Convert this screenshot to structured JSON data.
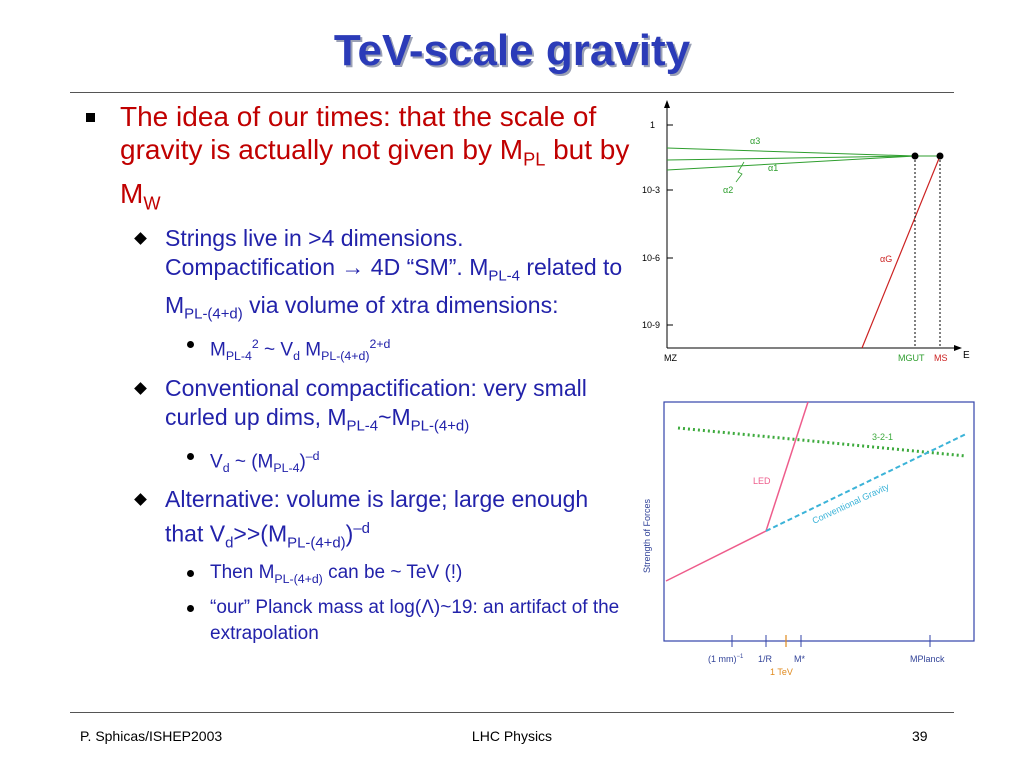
{
  "slide": {
    "title": "TeV-scale gravity",
    "bullet1": {
      "text_a": "The idea of our times: that the scale of gravity is actually not given by M",
      "sub_a": "PL",
      "text_b": " but by M",
      "sub_b": "W"
    },
    "bullet2": {
      "text_a": "Strings live in >4 dimensions. Compactification ",
      "arrow": "→",
      "text_b": " 4D “SM”.  M",
      "sub_b": "PL-4",
      "text_c": " related to M",
      "sub_c": "PL-(4+d)",
      "text_d": " via volume of xtra dimensions:"
    },
    "bullet2_1": {
      "m": "M",
      "sub1": "PL-4",
      "sup1": "2",
      "mid": " ~ V",
      "sub2": "d",
      "m2": " M",
      "sub3": "PL-(4+d)",
      "sup3": "2+d"
    },
    "bullet3": {
      "text_a": "Conventional compactification: very small curled up dims, M",
      "sub_a": "PL-4",
      "text_b": "~M",
      "sub_b": "PL-(4+d)"
    },
    "bullet3_1": {
      "v": "V",
      "sub1": "d",
      "mid": " ~ (M",
      "sub2": "PL-4",
      "end": ")",
      "sup": "–d"
    },
    "bullet4": {
      "text_a": "Alternative: volume is large; large enough that V",
      "sub_a": "d",
      "text_b": ">>(M",
      "sub_b": "PL-(4+d)",
      "text_c": ")",
      "sup_c": "–d"
    },
    "bullet4_1": {
      "text_a": "Then M",
      "sub_a": "PL-(4+d)",
      "text_b": " can be ~ TeV (!)"
    },
    "bullet4_2": {
      "text_a": "“our” Planck mass at log(",
      "lambda": "Λ",
      "text_b": ")~19: an artifact of the extrapolation"
    }
  },
  "chart_data": [
    {
      "type": "line",
      "title": "",
      "xlabel": "E",
      "ylabel": "",
      "y_scale": "log",
      "y_ticks": [
        "1",
        "10-3",
        "10-6",
        "10-9"
      ],
      "x_ticks": [
        "MZ",
        "MGUT",
        "MS"
      ],
      "series": [
        {
          "name": "α3"
        },
        {
          "name": "α1"
        },
        {
          "name": "α2"
        },
        {
          "name": "αG"
        }
      ],
      "colors": {
        "couplings": "#2e9e2e",
        "gravity": "#cc2222"
      }
    },
    {
      "type": "line",
      "ylabel": "Strength of Forces",
      "x_ticks": [
        "(1 mm)",
        "1/R",
        "M*",
        "MPlanck"
      ],
      "x_tick_sup": "−1",
      "x_annotation": "1 TeV",
      "series": [
        {
          "name": "3-2-1",
          "style": "dotted",
          "color": "#3daa3d"
        },
        {
          "name": "LED",
          "style": "solid",
          "color": "#ee5d8c"
        },
        {
          "name": "Conventional Gravity",
          "style": "dashed",
          "color": "#3bb3d8"
        }
      ],
      "colors": {
        "frame": "#3344aa",
        "tick_label": "#334499",
        "tev": "#e08a1e"
      }
    }
  ],
  "footer": {
    "left": "P. Sphicas/ISHEP2003",
    "center": "LHC Physics",
    "right": "39"
  }
}
